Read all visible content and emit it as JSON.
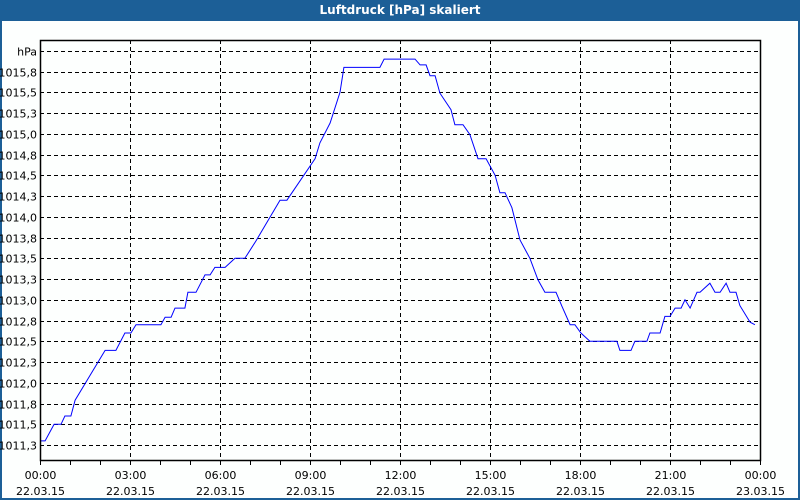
{
  "window": {
    "title": "Luftdruck [hPa] skaliert"
  },
  "chart_data": {
    "type": "line",
    "title": "Luftdruck [hPa] skaliert",
    "ylabel": "hPa",
    "xlabel": "",
    "ylim": [
      1011.07,
      1016.13
    ],
    "xlim_hours": [
      0,
      24
    ],
    "grid": true,
    "series_color": "#0000ff",
    "y_ticks": [
      {
        "value": 1011.25,
        "label": "1011,3"
      },
      {
        "value": 1011.5,
        "label": "1011,5"
      },
      {
        "value": 1011.75,
        "label": "1011,8"
      },
      {
        "value": 1012.0,
        "label": "1012,0"
      },
      {
        "value": 1012.25,
        "label": "1012,3"
      },
      {
        "value": 1012.5,
        "label": "1012,5"
      },
      {
        "value": 1012.75,
        "label": "1012,8"
      },
      {
        "value": 1013.0,
        "label": "1013,0"
      },
      {
        "value": 1013.25,
        "label": "1013,3"
      },
      {
        "value": 1013.5,
        "label": "1013,5"
      },
      {
        "value": 1013.75,
        "label": "1013,8"
      },
      {
        "value": 1014.0,
        "label": "1014,0"
      },
      {
        "value": 1014.25,
        "label": "1014,3"
      },
      {
        "value": 1014.5,
        "label": "1014,5"
      },
      {
        "value": 1014.75,
        "label": "1014,8"
      },
      {
        "value": 1015.0,
        "label": "1015,0"
      },
      {
        "value": 1015.25,
        "label": "1015,3"
      },
      {
        "value": 1015.5,
        "label": "1015,5"
      },
      {
        "value": 1015.75,
        "label": "1015,8"
      },
      {
        "value": 1016.0,
        "label": "hPa"
      }
    ],
    "x_ticks": [
      {
        "hour": 0,
        "time": "00:00",
        "date": "22.03.15"
      },
      {
        "hour": 3,
        "time": "03:00",
        "date": "22.03.15"
      },
      {
        "hour": 6,
        "time": "06:00",
        "date": "22.03.15"
      },
      {
        "hour": 9,
        "time": "09:00",
        "date": "22.03.15"
      },
      {
        "hour": 12,
        "time": "12:00",
        "date": "22.03.15"
      },
      {
        "hour": 15,
        "time": "15:00",
        "date": "22.03.15"
      },
      {
        "hour": 18,
        "time": "18:00",
        "date": "22.03.15"
      },
      {
        "hour": 21,
        "time": "21:00",
        "date": "22.03.15"
      },
      {
        "hour": 24,
        "time": "00:00",
        "date": "23.03.15"
      }
    ],
    "series": [
      {
        "name": "Luftdruck",
        "points": [
          [
            0.0,
            1011.3
          ],
          [
            0.17,
            1011.3
          ],
          [
            0.47,
            1011.5
          ],
          [
            0.7,
            1011.5
          ],
          [
            0.83,
            1011.6
          ],
          [
            1.03,
            1011.6
          ],
          [
            1.17,
            1011.79
          ],
          [
            2.17,
            1012.39
          ],
          [
            2.53,
            1012.39
          ],
          [
            2.83,
            1012.6
          ],
          [
            3.03,
            1012.6
          ],
          [
            3.2,
            1012.7
          ],
          [
            4.03,
            1012.7
          ],
          [
            4.17,
            1012.79
          ],
          [
            4.37,
            1012.79
          ],
          [
            4.5,
            1012.9
          ],
          [
            4.83,
            1012.9
          ],
          [
            4.93,
            1013.09
          ],
          [
            5.2,
            1013.09
          ],
          [
            5.5,
            1013.3
          ],
          [
            5.67,
            1013.3
          ],
          [
            5.83,
            1013.39
          ],
          [
            6.17,
            1013.39
          ],
          [
            6.5,
            1013.5
          ],
          [
            6.83,
            1013.5
          ],
          [
            7.2,
            1013.71
          ],
          [
            8.0,
            1014.2
          ],
          [
            8.23,
            1014.2
          ],
          [
            9.17,
            1014.7
          ],
          [
            9.33,
            1014.89
          ],
          [
            9.67,
            1015.13
          ],
          [
            10.0,
            1015.5
          ],
          [
            10.13,
            1015.8
          ],
          [
            11.33,
            1015.8
          ],
          [
            11.47,
            1015.9
          ],
          [
            12.5,
            1015.9
          ],
          [
            12.67,
            1015.83
          ],
          [
            12.87,
            1015.83
          ],
          [
            13.0,
            1015.7
          ],
          [
            13.17,
            1015.7
          ],
          [
            13.33,
            1015.49
          ],
          [
            13.7,
            1015.29
          ],
          [
            13.83,
            1015.11
          ],
          [
            14.1,
            1015.11
          ],
          [
            14.33,
            1014.99
          ],
          [
            14.6,
            1014.7
          ],
          [
            14.87,
            1014.7
          ],
          [
            15.17,
            1014.5
          ],
          [
            15.33,
            1014.29
          ],
          [
            15.5,
            1014.29
          ],
          [
            15.73,
            1014.11
          ],
          [
            16.0,
            1013.72
          ],
          [
            16.33,
            1013.5
          ],
          [
            16.6,
            1013.24
          ],
          [
            16.83,
            1013.09
          ],
          [
            17.2,
            1013.09
          ],
          [
            17.4,
            1012.92
          ],
          [
            17.67,
            1012.7
          ],
          [
            17.83,
            1012.7
          ],
          [
            18.03,
            1012.6
          ],
          [
            18.33,
            1012.5
          ],
          [
            19.23,
            1012.5
          ],
          [
            19.33,
            1012.39
          ],
          [
            19.7,
            1012.39
          ],
          [
            19.83,
            1012.5
          ],
          [
            20.23,
            1012.5
          ],
          [
            20.33,
            1012.6
          ],
          [
            20.67,
            1012.6
          ],
          [
            20.83,
            1012.8
          ],
          [
            21.0,
            1012.8
          ],
          [
            21.17,
            1012.9
          ],
          [
            21.37,
            1012.9
          ],
          [
            21.5,
            1013.0
          ],
          [
            21.67,
            1012.9
          ],
          [
            21.9,
            1013.09
          ],
          [
            22.0,
            1013.09
          ],
          [
            22.33,
            1013.2
          ],
          [
            22.5,
            1013.09
          ],
          [
            22.67,
            1013.09
          ],
          [
            22.87,
            1013.2
          ],
          [
            23.0,
            1013.09
          ],
          [
            23.2,
            1013.09
          ],
          [
            23.33,
            1012.93
          ],
          [
            23.67,
            1012.73
          ],
          [
            23.83,
            1012.7
          ]
        ]
      }
    ]
  }
}
